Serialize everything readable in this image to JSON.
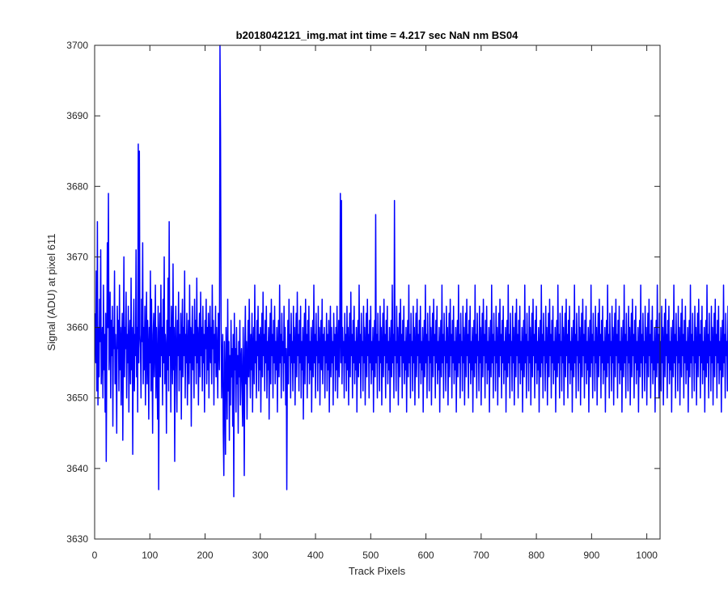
{
  "chart_data": {
    "type": "line",
    "title": "b2018042121_img.mat int time = 4.217 sec  NaN nm BS04",
    "xlabel": "Track Pixels",
    "ylabel": "Signal (ADU) at pixel 611",
    "xlim": [
      0,
      1024
    ],
    "ylim": [
      3630,
      3700
    ],
    "xticks": [
      0,
      100,
      200,
      300,
      400,
      500,
      600,
      700,
      800,
      900,
      1000
    ],
    "yticks": [
      3630,
      3640,
      3650,
      3660,
      3670,
      3680,
      3690,
      3700
    ],
    "grid": false,
    "legend": "none",
    "series": [
      {
        "color": "#0000ff",
        "x_start": 1,
        "x_step": 1,
        "values": [
          3662,
          3655,
          3668,
          3651,
          3675,
          3649,
          3660,
          3653,
          3664,
          3658,
          3671,
          3652,
          3657,
          3660,
          3650,
          3666,
          3654,
          3659,
          3648,
          3662,
          3641,
          3656,
          3672,
          3660,
          3679,
          3654,
          3658,
          3665,
          3650,
          3661,
          3656,
          3663,
          3646,
          3660,
          3657,
          3668,
          3652,
          3659,
          3655,
          3645,
          3663,
          3657,
          3661,
          3651,
          3666,
          3654,
          3660,
          3649,
          3658,
          3662,
          3644,
          3656,
          3670,
          3653,
          3660,
          3657,
          3665,
          3650,
          3659,
          3655,
          3663,
          3648,
          3658,
          3661,
          3652,
          3667,
          3654,
          3660,
          3642,
          3657,
          3664,
          3651,
          3659,
          3656,
          3671,
          3653,
          3660,
          3648,
          3686,
          3655,
          3685,
          3659,
          3657,
          3650,
          3664,
          3658,
          3672,
          3652,
          3660,
          3654,
          3663,
          3649,
          3658,
          3665,
          3652,
          3661,
          3657,
          3647,
          3660,
          3655,
          3668,
          3651,
          3664,
          3656,
          3645,
          3659,
          3662,
          3653,
          3657,
          3666,
          3650,
          3660,
          3655,
          3647,
          3663,
          3637,
          3658,
          3662,
          3653,
          3666,
          3656,
          3660,
          3649,
          3664,
          3655,
          3670,
          3652,
          3659,
          3657,
          3645,
          3661,
          3654,
          3667,
          3651,
          3675,
          3656,
          3660,
          3648,
          3663,
          3658,
          3652,
          3669,
          3654,
          3660,
          3641,
          3657,
          3663,
          3655,
          3648,
          3661,
          3656,
          3665,
          3651,
          3659,
          3654,
          3662,
          3647,
          3658,
          3664,
          3653,
          3660,
          3656,
          3668,
          3650,
          3659,
          3655,
          3662,
          3649,
          3657,
          3661,
          3652,
          3666,
          3655,
          3660,
          3646,
          3658,
          3663,
          3654,
          3659,
          3650,
          3664,
          3656,
          3661,
          3652,
          3667,
          3655,
          3660,
          3649,
          3658,
          3662,
          3653,
          3665,
          3656,
          3660,
          3651,
          3663,
          3655,
          3659,
          3648,
          3661,
          3657,
          3664,
          3652,
          3660,
          3654,
          3662,
          3650,
          3658,
          3663,
          3655,
          3660,
          3652,
          3666,
          3657,
          3661,
          3649,
          3659,
          3655,
          3663,
          3653,
          3660,
          3656,
          3650,
          3662,
          3658,
          3654,
          3700,
          3687,
          3661,
          3650,
          3655,
          3659,
          3645,
          3639,
          3658,
          3652,
          3642,
          3660,
          3655,
          3647,
          3664,
          3651,
          3658,
          3644,
          3656,
          3649,
          3661,
          3653,
          3657,
          3646,
          3659,
          3636,
          3662,
          3654,
          3657,
          3648,
          3660,
          3652,
          3656,
          3645,
          3658,
          3653,
          3661,
          3649,
          3655,
          3657,
          3651,
          3646,
          3660,
          3654,
          3639,
          3657,
          3663,
          3652,
          3658,
          3647,
          3655,
          3661,
          3653,
          3664,
          3656,
          3650,
          3659,
          3654,
          3662,
          3648,
          3657,
          3660,
          3652,
          3666,
          3655,
          3658,
          3650,
          3661,
          3656,
          3663,
          3651,
          3659,
          3654,
          3660,
          3648,
          3657,
          3662,
          3653,
          3665,
          3656,
          3659,
          3651,
          3661,
          3655,
          3663,
          3650,
          3658,
          3654,
          3660,
          3647,
          3657,
          3662,
          3652,
          3664,
          3656,
          3659,
          3650,
          3661,
          3655,
          3663,
          3652,
          3658,
          3654,
          3660,
          3648,
          3657,
          3661,
          3653,
          3666,
          3655,
          3659,
          3650,
          3662,
          3656,
          3658,
          3651,
          3663,
          3655,
          3660,
          3649,
          3657,
          3637,
          3654,
          3661,
          3652,
          3664,
          3656,
          3659,
          3650,
          3662,
          3655,
          3658,
          3651,
          3663,
          3655,
          3660,
          3649,
          3657,
          3662,
          3653,
          3665,
          3656,
          3659,
          3651,
          3661,
          3655,
          3663,
          3650,
          3658,
          3654,
          3660,
          3647,
          3657,
          3662,
          3652,
          3664,
          3656,
          3659,
          3650,
          3661,
          3655,
          3663,
          3652,
          3658,
          3654,
          3660,
          3648,
          3657,
          3661,
          3653,
          3666,
          3655,
          3659,
          3650,
          3662,
          3656,
          3658,
          3651,
          3663,
          3655,
          3660,
          3649,
          3657,
          3661,
          3654,
          3664,
          3652,
          3659,
          3656,
          3660,
          3650,
          3658,
          3655,
          3662,
          3651,
          3659,
          3654,
          3661,
          3648,
          3657,
          3663,
          3653,
          3660,
          3655,
          3658,
          3649,
          3662,
          3656,
          3659,
          3651,
          3660,
          3654,
          3663,
          3650,
          3657,
          3661,
          3653,
          3659,
          3679,
          3655,
          3678,
          3652,
          3660,
          3656,
          3658,
          3650,
          3662,
          3655,
          3659,
          3651,
          3663,
          3654,
          3660,
          3649,
          3657,
          3662,
          3653,
          3665,
          3656,
          3659,
          3650,
          3661,
          3655,
          3663,
          3652,
          3658,
          3654,
          3660,
          3648,
          3657,
          3661,
          3653,
          3666,
          3655,
          3659,
          3650,
          3662,
          3656,
          3658,
          3651,
          3663,
          3655,
          3660,
          3649,
          3657,
          3662,
          3653,
          3664,
          3656,
          3659,
          3650,
          3661,
          3655,
          3663,
          3652,
          3658,
          3654,
          3660,
          3648,
          3657,
          3661,
          3653,
          3676,
          3655,
          3659,
          3650,
          3662,
          3656,
          3658,
          3651,
          3663,
          3655,
          3660,
          3649,
          3657,
          3662,
          3653,
          3664,
          3656,
          3659,
          3650,
          3661,
          3655,
          3663,
          3652,
          3658,
          3654,
          3660,
          3648,
          3657,
          3661,
          3653,
          3666,
          3655,
          3659,
          3650,
          3678,
          3656,
          3658,
          3651,
          3663,
          3655,
          3660,
          3649,
          3657,
          3662,
          3653,
          3664,
          3656,
          3659,
          3650,
          3661,
          3655,
          3663,
          3652,
          3658,
          3654,
          3660,
          3648,
          3657,
          3661,
          3653,
          3666,
          3655,
          3659,
          3650,
          3662,
          3656,
          3658,
          3651,
          3663,
          3655,
          3660,
          3649,
          3657,
          3662,
          3653,
          3664,
          3656,
          3659,
          3650,
          3661,
          3655,
          3663,
          3652,
          3658,
          3654,
          3660,
          3648,
          3657,
          3661,
          3653,
          3666,
          3655,
          3659,
          3650,
          3662,
          3656,
          3658,
          3651,
          3663,
          3655,
          3660,
          3649,
          3657,
          3662,
          3653,
          3664,
          3656,
          3659,
          3650,
          3661,
          3655,
          3663,
          3652,
          3658,
          3654,
          3660,
          3648,
          3657,
          3661,
          3653,
          3666,
          3655,
          3659,
          3650,
          3662,
          3656,
          3658,
          3651,
          3663,
          3655,
          3660,
          3649,
          3657,
          3662,
          3653,
          3664,
          3656,
          3659,
          3650,
          3661,
          3655,
          3663,
          3652,
          3658,
          3654,
          3660,
          3648,
          3657,
          3661,
          3653,
          3666,
          3655,
          3659,
          3650,
          3662,
          3656,
          3658,
          3651,
          3663,
          3655,
          3660,
          3649,
          3657,
          3662,
          3653,
          3664,
          3656,
          3659,
          3650,
          3661,
          3655,
          3663,
          3652,
          3658,
          3654,
          3660,
          3648,
          3657,
          3661,
          3653,
          3666,
          3655,
          3659,
          3650,
          3662,
          3656,
          3658,
          3651,
          3663,
          3655,
          3660,
          3649,
          3657,
          3662,
          3653,
          3664,
          3656,
          3659,
          3650,
          3661,
          3655,
          3663,
          3652,
          3658,
          3654,
          3660,
          3648,
          3657,
          3661,
          3653,
          3666,
          3655,
          3659,
          3650,
          3662,
          3656,
          3658,
          3651,
          3663,
          3655,
          3660,
          3649,
          3657,
          3662,
          3653,
          3664,
          3656,
          3659,
          3650,
          3661,
          3655,
          3663,
          3652,
          3658,
          3654,
          3660,
          3648,
          3657,
          3661,
          3653,
          3666,
          3655,
          3659,
          3650,
          3662,
          3656,
          3658,
          3651,
          3663,
          3655,
          3660,
          3649,
          3657,
          3662,
          3653,
          3664,
          3656,
          3659,
          3650,
          3661,
          3655,
          3663,
          3652,
          3658,
          3654,
          3660,
          3648,
          3657,
          3661,
          3653,
          3666,
          3655,
          3659,
          3650,
          3662,
          3656,
          3658,
          3651,
          3663,
          3655,
          3660,
          3649,
          3657,
          3662,
          3653,
          3664,
          3656,
          3659,
          3650,
          3661,
          3655,
          3663,
          3652,
          3658,
          3654,
          3660,
          3648,
          3657,
          3661,
          3653,
          3666,
          3655,
          3659,
          3650,
          3662,
          3656,
          3658,
          3651,
          3663,
          3655,
          3660,
          3649,
          3657,
          3662,
          3653,
          3664,
          3656,
          3659,
          3650,
          3661,
          3655,
          3663,
          3652,
          3658,
          3654,
          3660,
          3648,
          3657,
          3661,
          3653,
          3666,
          3655,
          3659,
          3650,
          3662,
          3656,
          3658,
          3651,
          3663,
          3655,
          3660,
          3649,
          3657,
          3662,
          3653,
          3664,
          3656,
          3659,
          3650,
          3661,
          3655,
          3663,
          3652,
          3658,
          3654,
          3660,
          3648,
          3657,
          3661,
          3653,
          3666,
          3655,
          3659,
          3650,
          3662,
          3656,
          3658,
          3651,
          3663,
          3655,
          3660,
          3649,
          3657,
          3662,
          3653,
          3664,
          3656,
          3659,
          3650,
          3661,
          3655,
          3663,
          3652,
          3658,
          3654,
          3660,
          3648,
          3657,
          3661,
          3653,
          3666,
          3655,
          3659,
          3650,
          3662,
          3656,
          3658,
          3651,
          3663,
          3655,
          3660,
          3649,
          3657,
          3662,
          3653,
          3664,
          3656,
          3659,
          3650,
          3661,
          3655,
          3663,
          3652,
          3658,
          3654,
          3660,
          3648,
          3657,
          3661,
          3653,
          3666,
          3655,
          3659,
          3650,
          3662,
          3656,
          3658,
          3651,
          3663,
          3655,
          3660,
          3649,
          3657,
          3662,
          3653,
          3664,
          3656,
          3659,
          3650,
          3661,
          3655,
          3663,
          3652,
          3658,
          3654,
          3660,
          3648,
          3657,
          3661,
          3653,
          3666,
          3655,
          3659,
          3650,
          3662,
          3656,
          3658,
          3651,
          3663,
          3655,
          3660,
          3649,
          3657,
          3662,
          3653,
          3664,
          3656,
          3659,
          3650,
          3661,
          3655,
          3663,
          3652,
          3658,
          3654,
          3660,
          3648,
          3657,
          3661,
          3653,
          3666,
          3655,
          3659,
          3650,
          3662,
          3656,
          3658,
          3651,
          3663,
          3655,
          3660,
          3649,
          3657,
          3662,
          3653,
          3664,
          3656,
          3659,
          3650,
          3661,
          3655,
          3663,
          3652,
          3658,
          3654,
          3660,
          3648,
          3657,
          3661,
          3653,
          3666,
          3655,
          3659,
          3650,
          3662,
          3656,
          3658,
          3651,
          3663,
          3655,
          3660,
          3649,
          3657,
          3662,
          3653,
          3664,
          3656,
          3659,
          3650,
          3661,
          3655,
          3663,
          3652,
          3658,
          3654,
          3660,
          3648,
          3657,
          3661,
          3653,
          3666,
          3655,
          3659,
          3650,
          3662,
          3656,
          3658,
          3651,
          3663,
          3655,
          3660,
          3649,
          3657,
          3662,
          3653,
          3664,
          3656,
          3659,
          3650,
          3661,
          3655,
          3663,
          3652,
          3658,
          3654,
          3660,
          3648,
          3657,
          3661,
          3653,
          3666,
          3655,
          3659,
          3650,
          3662,
          3656,
          3658,
          3651,
          3663,
          3655,
          3660,
          3649,
          3657,
          3662,
          3653,
          3664,
          3656,
          3659,
          3650,
          3661,
          3655,
          3663,
          3652,
          3658,
          3654,
          3660,
          3648,
          3657,
          3661,
          3653,
          3666,
          3655,
          3659,
          3650,
          3662,
          3656,
          3658,
          3651,
          3663,
          3655,
          3660,
          3649,
          3657,
          3662,
          3653,
          3664,
          3656,
          3659,
          3650,
          3661,
          3655,
          3663,
          3652,
          3658,
          3654,
          3660,
          3648,
          3657,
          3661,
          3653,
          3666,
          3655,
          3659,
          3650,
          3662,
          3656,
          3658,
          3651,
          3663,
          3655,
          3660,
          3649,
          3657,
          3662,
          3653,
          3664,
          3656,
          3659,
          3650,
          3661,
          3655,
          3663,
          3652,
          3658,
          3654,
          3660,
          3648,
          3657,
          3661,
          3653,
          3666,
          3655,
          3659,
          3650,
          3662,
          3656,
          3658,
          3651,
          3663,
          3655,
          3660,
          3649,
          3657,
          3662,
          3653,
          3664,
          3656,
          3659
        ]
      }
    ]
  }
}
